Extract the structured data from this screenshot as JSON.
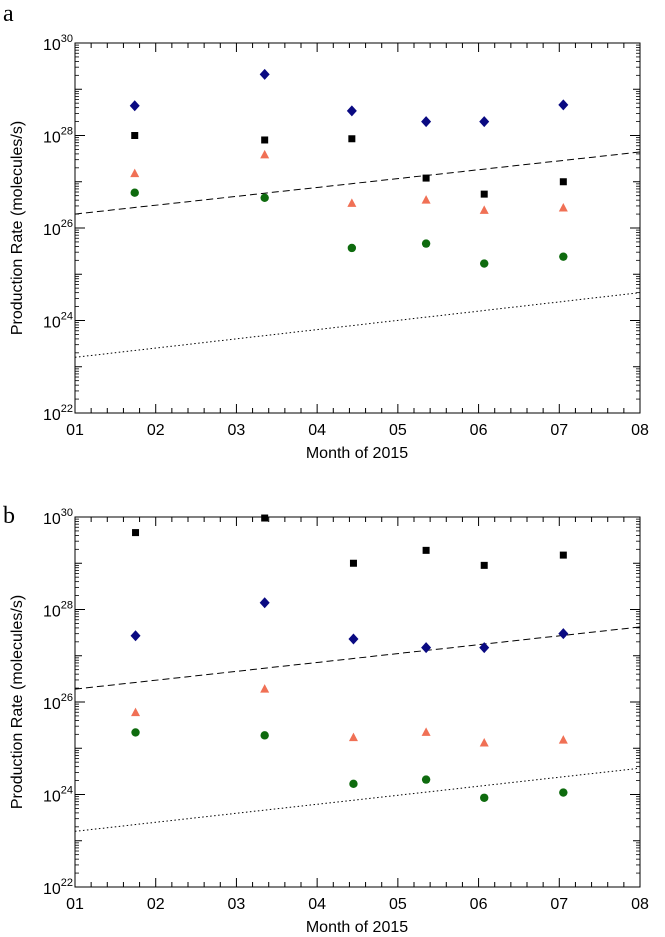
{
  "figure": {
    "panels": [
      "a",
      "b"
    ]
  },
  "chart_data": [
    {
      "panel": "a",
      "type": "scatter",
      "xlabel": "Month of 2015",
      "ylabel": "Production Rate (molecules/s)",
      "xlim": [
        1,
        8
      ],
      "ylim": [
        1e+22,
        1e+30
      ],
      "yscale": "log",
      "x_ticks": [
        "01",
        "02",
        "03",
        "04",
        "05",
        "06",
        "07",
        "08"
      ],
      "y_tick_values": [
        22,
        24,
        26,
        28,
        30
      ],
      "grid": false,
      "series": [
        {
          "marker": "diamond",
          "color": "#0a0a82",
          "x": [
            1.74,
            3.35,
            4.43,
            5.35,
            6.07,
            7.05
          ],
          "y": [
            4.4e+28,
            2.1e+29,
            3.4e+28,
            2e+28,
            2e+28,
            4.6e+28
          ]
        },
        {
          "marker": "square",
          "color": "#000000",
          "x": [
            1.74,
            3.35,
            4.43,
            5.35,
            6.07,
            7.05
          ],
          "y": [
            1e+28,
            8e+27,
            8.5e+27,
            1.2e+27,
            5.4e+26,
            1e+27
          ]
        },
        {
          "marker": "triangle",
          "color": "#f07055",
          "x": [
            1.74,
            3.35,
            4.43,
            5.35,
            6.07,
            7.05
          ],
          "y": [
            1.5e+27,
            3.8e+27,
            3.4e+26,
            4e+26,
            2.4e+26,
            2.7e+26
          ]
        },
        {
          "marker": "circle",
          "color": "#0e6b0e",
          "x": [
            1.74,
            3.35,
            4.43,
            5.35,
            6.07,
            7.05
          ],
          "y": [
            5.8e+26,
            4.5e+26,
            3.7e+25,
            4.6e+25,
            1.7e+25,
            2.4e+25
          ]
        }
      ],
      "curves": [
        {
          "style": "dashed",
          "x": [
            1,
            8
          ],
          "y": [
            2e+26,
            4.4e+27
          ]
        },
        {
          "style": "dotted",
          "x": [
            1,
            8
          ],
          "y": [
            1.6e+23,
            4e+24
          ]
        }
      ]
    },
    {
      "panel": "b",
      "type": "scatter",
      "xlabel": "Month of 2015",
      "ylabel": "Production Rate (molecules/s)",
      "xlim": [
        1,
        8
      ],
      "ylim": [
        1e+22,
        1e+30
      ],
      "yscale": "log",
      "x_ticks": [
        "01",
        "02",
        "03",
        "04",
        "05",
        "06",
        "07",
        "08"
      ],
      "y_tick_values": [
        22,
        24,
        26,
        28,
        30
      ],
      "grid": false,
      "series": [
        {
          "marker": "square",
          "color": "#000000",
          "x": [
            1.75,
            3.35,
            4.45,
            5.35,
            6.07,
            7.05
          ],
          "y": [
            4.6e+29,
            9.5e+29,
            1e+29,
            1.9e+29,
            9e+28,
            1.5e+29
          ]
        },
        {
          "marker": "diamond",
          "color": "#0a0a82",
          "x": [
            1.75,
            3.35,
            4.45,
            5.35,
            6.07,
            7.05
          ],
          "y": [
            2.7e+27,
            1.4e+28,
            2.3e+27,
            1.5e+27,
            1.5e+27,
            3e+27
          ]
        },
        {
          "marker": "triangle",
          "color": "#f07055",
          "x": [
            1.75,
            3.35,
            4.45,
            5.35,
            6.07,
            7.05
          ],
          "y": [
            5.9e+25,
            1.9e+26,
            1.7e+25,
            2.2e+25,
            1.3e+25,
            1.5e+25
          ]
        },
        {
          "marker": "circle",
          "color": "#0e6b0e",
          "x": [
            1.75,
            3.35,
            4.45,
            5.35,
            6.07,
            7.05
          ],
          "y": [
            2.2e+25,
            1.9e+25,
            1.7e+24,
            2.1e+24,
            8.5e+23,
            1.1e+24
          ]
        }
      ],
      "curves": [
        {
          "style": "dashed",
          "x": [
            1,
            8
          ],
          "y": [
            1.9e+26,
            4.2e+27
          ]
        },
        {
          "style": "dotted",
          "x": [
            1,
            8
          ],
          "y": [
            1.6e+23,
            3.7e+24
          ]
        }
      ]
    }
  ]
}
